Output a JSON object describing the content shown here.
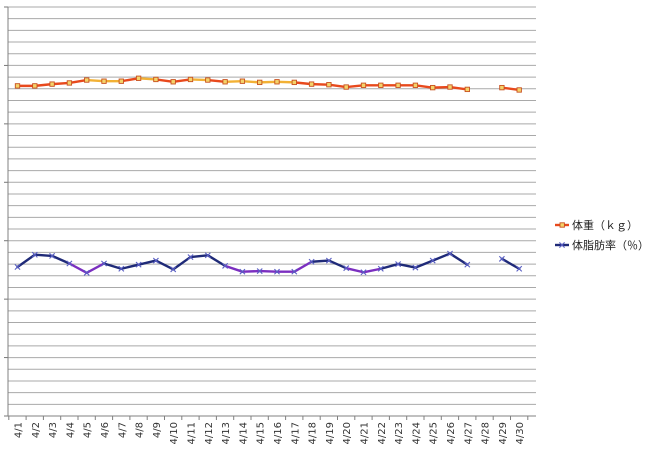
{
  "chart_data": {
    "type": "line",
    "title": "",
    "xlabel": "",
    "ylabel": "",
    "categories": [
      "4/1",
      "4/2",
      "4/3",
      "4/4",
      "4/5",
      "4/6",
      "4/7",
      "4/8",
      "4/9",
      "4/10",
      "4/11",
      "4/12",
      "4/13",
      "4/14",
      "4/15",
      "4/16",
      "4/17",
      "4/18",
      "4/19",
      "4/20",
      "4/21",
      "4/22",
      "4/23",
      "4/24",
      "4/25",
      "4/26",
      "4/27",
      "4/28",
      "4/29",
      "4/30"
    ],
    "ylim": [
      0,
      70
    ],
    "y_tick_labels_shown": false,
    "grid": true,
    "legend_position": "right",
    "series": [
      {
        "name": "体重（ｋｇ）",
        "color": "#e8491d",
        "highlight_color": "#f2b135",
        "marker": "square",
        "values": [
          56.5,
          56.5,
          56.8,
          57.0,
          57.5,
          57.3,
          57.3,
          57.8,
          57.6,
          57.2,
          57.6,
          57.5,
          57.2,
          57.3,
          57.1,
          57.2,
          57.1,
          56.8,
          56.7,
          56.3,
          56.6,
          56.6,
          56.6,
          56.6,
          56.2,
          56.3,
          55.9,
          null,
          56.2,
          55.8
        ]
      },
      {
        "name": "体脂肪率（％）",
        "color": "#1f2a78",
        "highlight_color": "#7b2fc0",
        "marker": "x",
        "values": [
          25.5,
          27.6,
          27.4,
          26.1,
          24.5,
          26.1,
          25.2,
          25.9,
          26.6,
          25.1,
          27.2,
          27.5,
          25.7,
          24.7,
          24.8,
          24.7,
          24.7,
          26.4,
          26.6,
          25.3,
          24.6,
          25.2,
          26.0,
          25.4,
          26.6,
          27.8,
          25.9,
          null,
          26.9,
          25.2
        ]
      }
    ]
  }
}
